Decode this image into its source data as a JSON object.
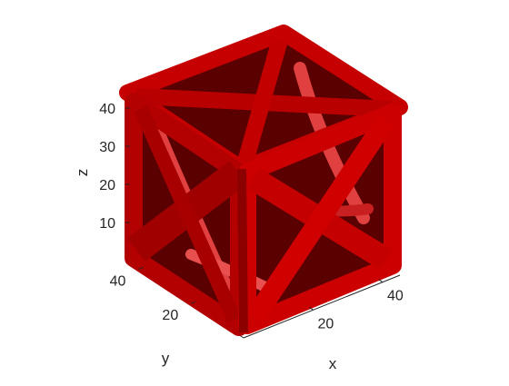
{
  "chart_data": {
    "type": "3d-isosurface",
    "shape": "cubic lattice cell with face-diagonal struts",
    "face_color": "#d10000",
    "axes": {
      "x": {
        "label": "x",
        "range": [
          0,
          45
        ],
        "ticks": [
          20,
          40
        ],
        "tick_labels": [
          "20",
          "40"
        ]
      },
      "y": {
        "label": "y",
        "range": [
          0,
          45
        ],
        "ticks": [
          20,
          40
        ],
        "tick_labels": [
          "20",
          "40"
        ]
      },
      "z": {
        "label": "z",
        "range": [
          0,
          45
        ],
        "ticks": [
          10,
          20,
          30,
          40
        ],
        "tick_labels": [
          "10",
          "20",
          "30",
          "40"
        ]
      }
    },
    "grid": false,
    "legend": "none"
  }
}
